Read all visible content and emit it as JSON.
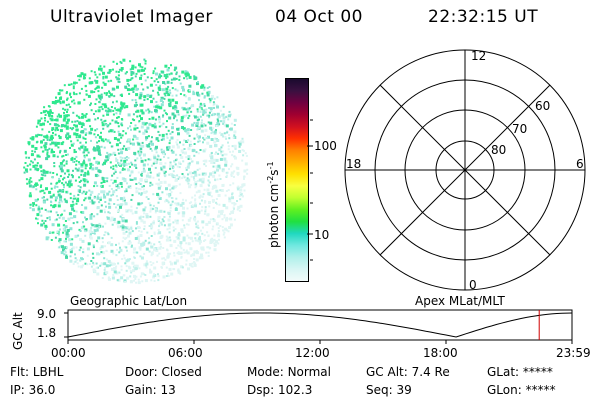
{
  "header": {
    "instrument": "Ultraviolet Imager",
    "date": "04 Oct 00",
    "time": "22:32:15 UT"
  },
  "image_panel": {
    "caption": "Geographic Lat/Lon",
    "dot_colors": [
      "#2ee88e",
      "#46d8a6",
      "#8fe6d6",
      "#bff0ea",
      "#dff6f4"
    ]
  },
  "colorbar": {
    "axis_label_html": "photon cm⁻²s⁻¹",
    "label_base": "photon cm",
    "label_exp1": "-2",
    "label_mid": "s",
    "label_exp2": "-1",
    "ticks": [
      "100",
      "10"
    ],
    "colors": [
      "#1a0a2e",
      "#3a1040",
      "#700040",
      "#a00030",
      "#d01020",
      "#ff3000",
      "#ff8000",
      "#ffb000",
      "#ffe000",
      "#f8ff40",
      "#c0ff30",
      "#60f020",
      "#20e040",
      "#20d8c0",
      "#70e8e0",
      "#b0f0ea",
      "#d8f6f4",
      "#f2fbfa"
    ]
  },
  "polar_grid": {
    "caption": "Apex MLat/MLT",
    "mlt_labels": {
      "top": "12",
      "left": "18",
      "right": "6",
      "bottom": "0"
    },
    "lat_labels": [
      "60",
      "70",
      "80"
    ]
  },
  "altitude_plot": {
    "ylabel": "GC Alt",
    "y_ticks": [
      "9.0",
      "1.8"
    ],
    "x_ticks": [
      "00:00",
      "06:00",
      "12:00",
      "18:00",
      "23:59"
    ],
    "marker_color": "#d00000",
    "current_time_fraction": 0.935
  },
  "footer": {
    "row1": [
      {
        "label": "Flt:",
        "value": "LBHL"
      },
      {
        "label": "Door:",
        "value": "Closed"
      },
      {
        "label": "Mode:",
        "value": "Normal"
      },
      {
        "label": "GC Alt:",
        "value": "7.4 Re"
      },
      {
        "label": "GLat:",
        "value": "*****"
      }
    ],
    "row2": [
      {
        "label": "IP:",
        "value": "36.0"
      },
      {
        "label": "Gain:",
        "value": "13"
      },
      {
        "label": "Dsp:",
        "value": "102.3"
      },
      {
        "label": "Seq:",
        "value": "39"
      },
      {
        "label": "GLon:",
        "value": "*****"
      }
    ]
  }
}
